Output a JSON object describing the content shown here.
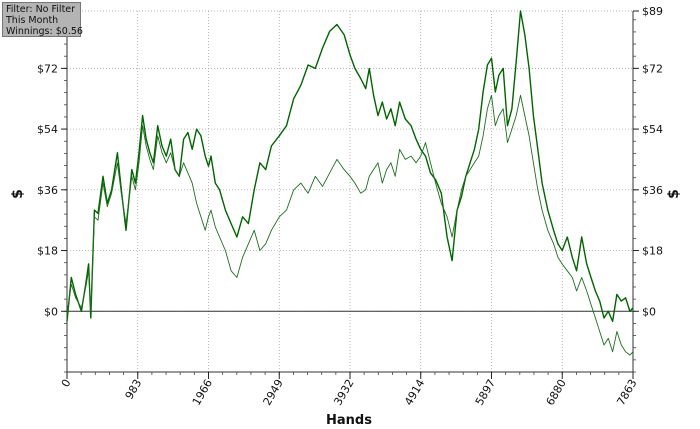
{
  "info": {
    "filter": "Filter: No Filter",
    "period": "This Month",
    "winnings": "Winnings: $0.56"
  },
  "chart_data": {
    "type": "line",
    "xlabel": "Hands",
    "ylabel": "$",
    "xlim": [
      0,
      7863
    ],
    "ylim": [
      -18,
      89
    ],
    "x_ticks": [
      0,
      983,
      1966,
      2949,
      3932,
      4914,
      5897,
      6880,
      7863
    ],
    "y_ticks": [
      0,
      18,
      36,
      54,
      72,
      89
    ],
    "y_tick_labels": [
      "$0",
      "$18",
      "$36",
      "$54",
      "$72",
      "$89"
    ],
    "grid": true,
    "colors": {
      "series_1": "#006400",
      "series_2": "#1e6e1e",
      "zero_line": "#333333"
    },
    "series": [
      {
        "x": [
          0,
          60,
          120,
          200,
          260,
          300,
          330,
          380,
          430,
          500,
          560,
          620,
          700,
          760,
          820,
          900,
          950,
          1000,
          1050,
          1100,
          1150,
          1200,
          1260,
          1320,
          1380,
          1440,
          1500,
          1560,
          1620,
          1680,
          1740,
          1800,
          1860,
          1920,
          1966,
          2000,
          2060,
          2120,
          2200,
          2280,
          2360,
          2440,
          2520,
          2600,
          2680,
          2760,
          2840,
          2949,
          3050,
          3150,
          3250,
          3350,
          3450,
          3550,
          3650,
          3750,
          3850,
          3932,
          4000,
          4080,
          4150,
          4200,
          4260,
          4320,
          4380,
          4440,
          4500,
          4560,
          4620,
          4700,
          4780,
          4850,
          4914,
          4980,
          5050,
          5120,
          5200,
          5280,
          5350,
          5420,
          5480,
          5540,
          5600,
          5660,
          5720,
          5780,
          5840,
          5897,
          5950,
          6000,
          6060,
          6120,
          6180,
          6240,
          6300,
          6360,
          6420,
          6480,
          6540,
          6600,
          6680,
          6760,
          6820,
          6880,
          6950,
          7020,
          7080,
          7150,
          7220,
          7280,
          7340,
          7400,
          7460,
          7520,
          7580,
          7640,
          7700,
          7760,
          7820,
          7863
        ],
        "y": [
          -3,
          10,
          5,
          0,
          8,
          14,
          -2,
          30,
          29,
          40,
          32,
          36,
          47,
          35,
          24,
          42,
          38,
          47,
          58,
          51,
          47,
          44,
          55,
          49,
          46,
          51,
          42,
          40,
          51,
          53,
          48,
          54,
          52,
          46,
          43,
          46,
          38,
          36,
          30,
          26,
          22,
          28,
          26,
          36,
          44,
          42,
          49,
          52,
          55,
          63,
          67,
          73,
          72,
          78,
          83,
          85,
          82,
          76,
          72,
          69,
          66,
          72,
          64,
          58,
          62,
          57,
          60,
          55,
          62,
          57,
          55,
          51,
          48,
          46,
          41,
          39,
          35,
          22,
          15,
          30,
          34,
          40,
          44,
          48,
          54,
          65,
          73,
          75,
          65,
          70,
          72,
          55,
          60,
          74,
          89,
          82,
          72,
          58,
          48,
          38,
          30,
          24,
          20,
          18,
          22,
          16,
          12,
          22,
          14,
          10,
          6,
          3,
          -2,
          0,
          -3,
          5,
          3,
          4,
          0,
          1
        ]
      },
      {
        "x": [
          0,
          60,
          120,
          200,
          260,
          300,
          330,
          380,
          430,
          500,
          560,
          620,
          700,
          760,
          820,
          900,
          950,
          1000,
          1050,
          1100,
          1150,
          1200,
          1260,
          1320,
          1380,
          1440,
          1500,
          1560,
          1620,
          1680,
          1740,
          1800,
          1860,
          1920,
          1966,
          2000,
          2060,
          2120,
          2200,
          2280,
          2360,
          2440,
          2520,
          2600,
          2680,
          2760,
          2840,
          2949,
          3050,
          3150,
          3250,
          3350,
          3450,
          3550,
          3650,
          3750,
          3850,
          3932,
          4000,
          4080,
          4150,
          4200,
          4260,
          4320,
          4380,
          4440,
          4500,
          4560,
          4620,
          4700,
          4780,
          4850,
          4914,
          4980,
          5050,
          5120,
          5200,
          5280,
          5350,
          5420,
          5480,
          5540,
          5600,
          5660,
          5720,
          5780,
          5840,
          5897,
          5950,
          6000,
          6060,
          6120,
          6180,
          6240,
          6300,
          6360,
          6420,
          6480,
          6540,
          6600,
          6680,
          6760,
          6820,
          6880,
          6950,
          7020,
          7080,
          7150,
          7220,
          7280,
          7340,
          7400,
          7460,
          7520,
          7580,
          7640,
          7700,
          7760,
          7820,
          7863
        ],
        "y": [
          -1,
          8,
          4,
          1,
          7,
          12,
          0,
          28,
          27,
          38,
          31,
          35,
          44,
          34,
          26,
          40,
          36,
          44,
          55,
          49,
          45,
          42,
          52,
          47,
          44,
          47,
          42,
          40,
          44,
          41,
          38,
          32,
          28,
          24,
          28,
          30,
          25,
          22,
          18,
          12,
          10,
          16,
          20,
          24,
          18,
          20,
          24,
          28,
          30,
          36,
          38,
          35,
          40,
          37,
          41,
          45,
          42,
          40,
          38,
          35,
          36,
          40,
          42,
          44,
          38,
          42,
          44,
          40,
          48,
          45,
          46,
          44,
          46,
          50,
          44,
          38,
          32,
          28,
          22,
          30,
          36,
          40,
          42,
          44,
          46,
          52,
          60,
          64,
          55,
          58,
          60,
          50,
          54,
          58,
          64,
          58,
          52,
          44,
          36,
          30,
          24,
          20,
          16,
          14,
          12,
          10,
          6,
          10,
          6,
          2,
          -2,
          -6,
          -10,
          -8,
          -12,
          -6,
          -10,
          -12,
          -13,
          -12
        ]
      }
    ]
  }
}
